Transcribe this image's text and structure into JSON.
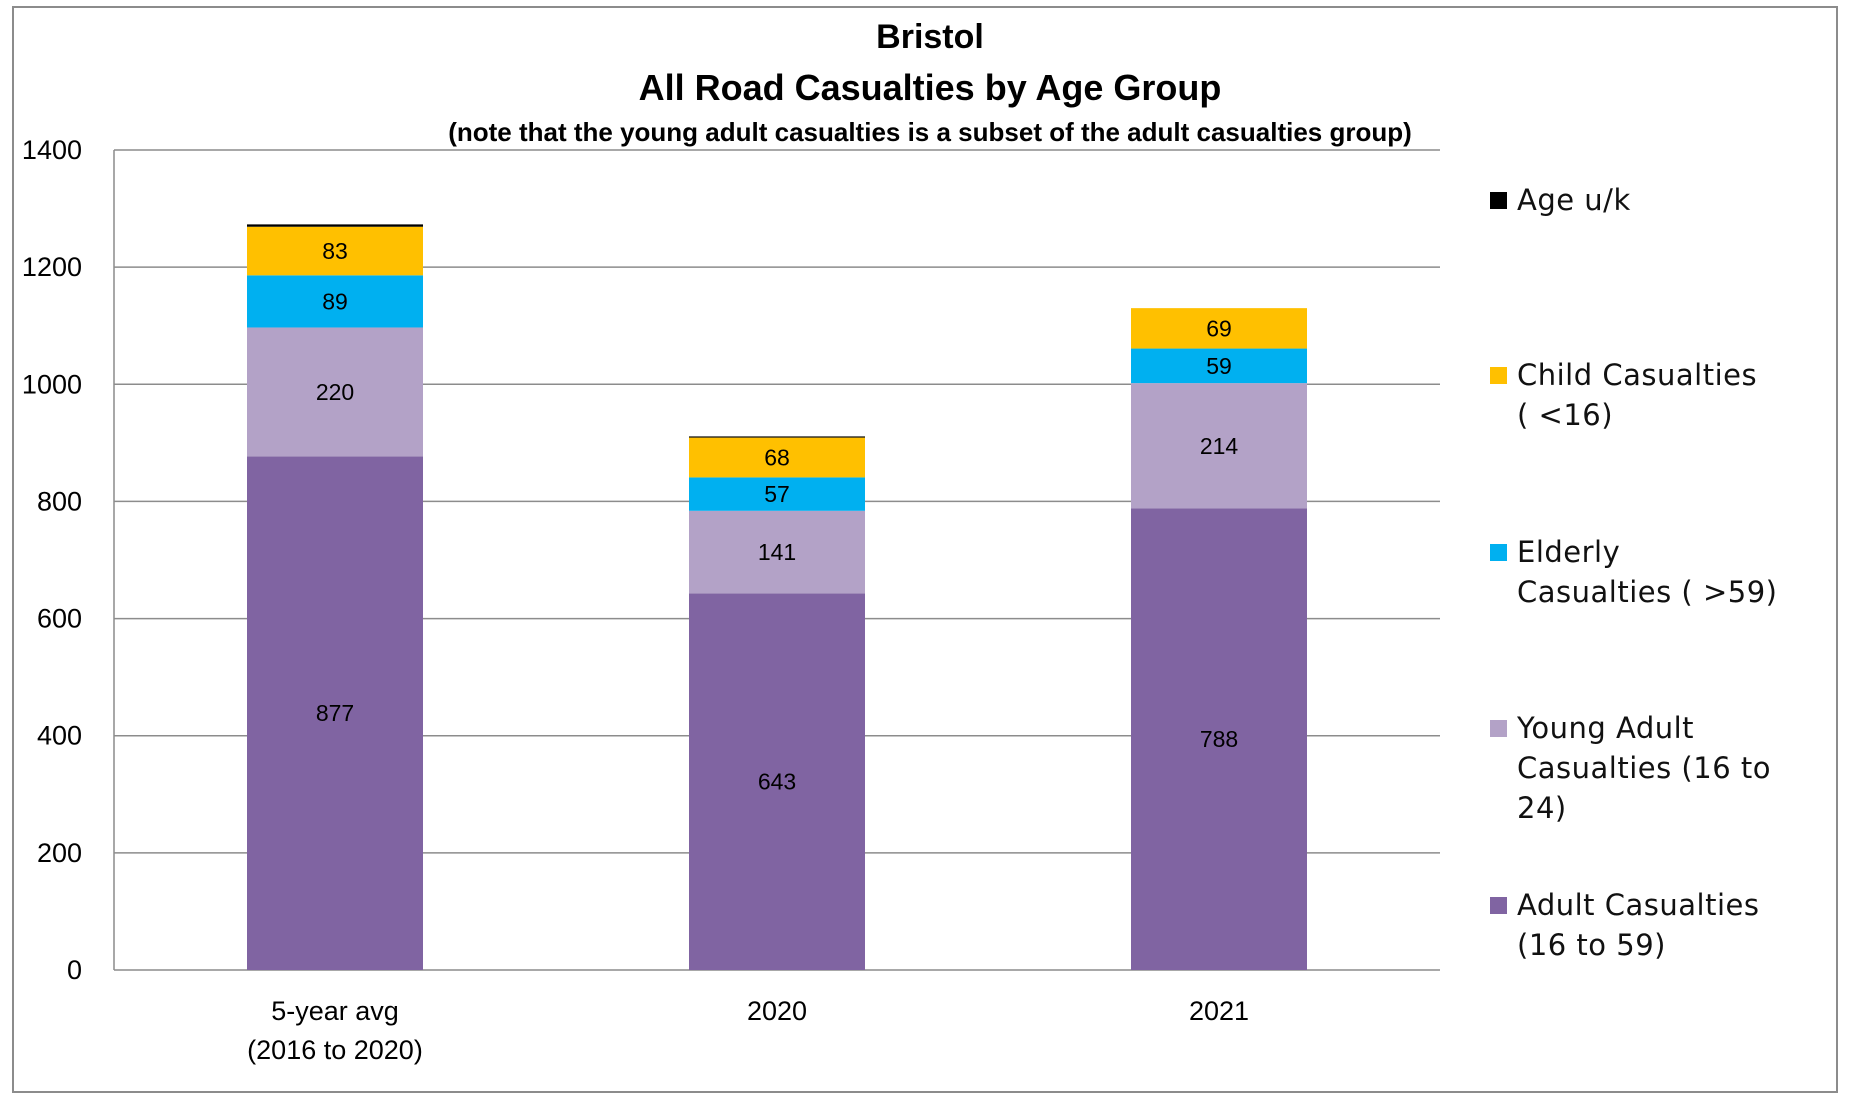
{
  "chart_data": {
    "type": "bar",
    "stacked": true,
    "title": "Bristol",
    "title_line2": "All Road Casualties by Age Group",
    "subtitle": "(note that the young adult casualties is a subset of the adult casualties group)",
    "categories": [
      [
        "5-year avg",
        "(2016 to 2020)"
      ],
      [
        "2020"
      ],
      [
        "2021"
      ]
    ],
    "ylim": [
      0,
      1400
    ],
    "yticks": [
      0,
      200,
      400,
      600,
      800,
      1000,
      1200,
      1400
    ],
    "grid": true,
    "legend_position": "right",
    "series": [
      {
        "name": "Adult Casualties (16 to 59)",
        "values": [
          877,
          643,
          788
        ],
        "color": "#8064a2",
        "labels": [
          "877",
          "643",
          "788"
        ]
      },
      {
        "name": "Young Adult Casualties (16 to 24)",
        "values": [
          220,
          141,
          214
        ],
        "color": "#b3a2c7",
        "labels": [
          "220",
          "141",
          "214"
        ]
      },
      {
        "name": "Elderly Casualties ( >59)",
        "values": [
          89,
          57,
          59
        ],
        "color": "#00b0f0",
        "labels": [
          "89",
          "57",
          "59"
        ]
      },
      {
        "name": "Child Casualties ( <16)",
        "values": [
          83,
          68,
          69
        ],
        "color": "#ffc000",
        "labels": [
          "83",
          "68",
          "69"
        ]
      },
      {
        "name": "Age u/k",
        "values": [
          4,
          2,
          0
        ],
        "color": "#000000",
        "labels": [
          "",
          "",
          ""
        ]
      }
    ]
  },
  "legend": [
    {
      "lines": [
        "Age u/k"
      ],
      "color": "#000000"
    },
    {
      "lines": [
        "Child Casualties",
        "( <16)"
      ],
      "color": "#ffc000"
    },
    {
      "lines": [
        "Elderly",
        "Casualties ( >59)"
      ],
      "color": "#00b0f0"
    },
    {
      "lines": [
        "Young Adult",
        "Casualties (16 to",
        "24)"
      ],
      "color": "#b3a2c7"
    },
    {
      "lines": [
        "Adult Casualties",
        "(16 to 59)"
      ],
      "color": "#8064a2"
    }
  ]
}
